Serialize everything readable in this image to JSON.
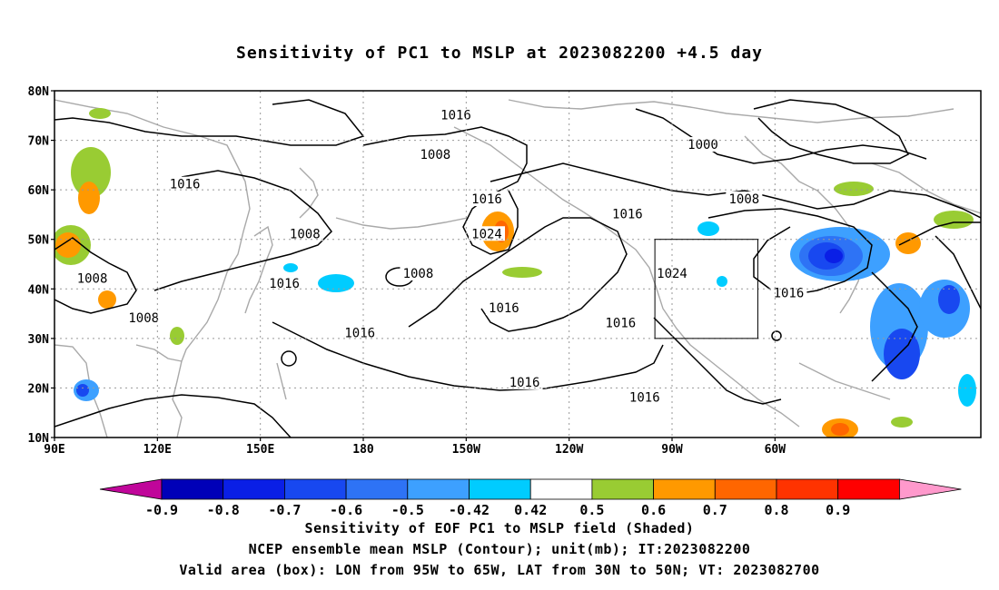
{
  "title": "Sensitivity of PC1 to MSLP at 2023082200 +4.5 day",
  "map": {
    "lat_labels": [
      "80N",
      "70N",
      "60N",
      "50N",
      "40N",
      "30N",
      "20N",
      "10N"
    ],
    "lon_labels": [
      "90E",
      "120E",
      "150E",
      "180",
      "150W",
      "120W",
      "90W",
      "60W"
    ],
    "contour_labels": [
      {
        "text": "1016",
        "lon": -153,
        "lat": 75
      },
      {
        "text": "1008",
        "lon": -159,
        "lat": 67
      },
      {
        "text": "1000",
        "lon": -81,
        "lat": 69
      },
      {
        "text": "1016",
        "lon": 128,
        "lat": 61
      },
      {
        "text": "1016",
        "lon": -144,
        "lat": 58
      },
      {
        "text": "1008",
        "lon": -69,
        "lat": 58
      },
      {
        "text": "1016",
        "lon": -103,
        "lat": 55
      },
      {
        "text": "1008",
        "lon": 163,
        "lat": 51
      },
      {
        "text": "1024",
        "lon": -144,
        "lat": 51
      },
      {
        "text": "1008",
        "lon": -164,
        "lat": 43
      },
      {
        "text": "1024",
        "lon": -90,
        "lat": 43
      },
      {
        "text": "1008",
        "lon": 101,
        "lat": 42
      },
      {
        "text": "1016",
        "lon": 157,
        "lat": 41
      },
      {
        "text": "1016",
        "lon": -56,
        "lat": 39
      },
      {
        "text": "1016",
        "lon": -139,
        "lat": 36
      },
      {
        "text": "1008",
        "lon": 116,
        "lat": 34
      },
      {
        "text": "1016",
        "lon": -105,
        "lat": 33
      },
      {
        "text": "1016",
        "lon": 179,
        "lat": 31
      },
      {
        "text": "1016",
        "lon": -133,
        "lat": 21
      },
      {
        "text": "1016",
        "lon": -98,
        "lat": 18
      }
    ],
    "valid_box": {
      "lon_min": -95,
      "lon_max": -65,
      "lat_min": 30,
      "lat_max": 50
    }
  },
  "colorbar": {
    "labels": [
      "-0.9",
      "-0.8",
      "-0.7",
      "-0.6",
      "-0.5",
      "-0.42",
      "0.42",
      "0.5",
      "0.6",
      "0.7",
      "0.8",
      "0.9"
    ],
    "colors": [
      "#c0069a",
      "#0000b8",
      "#0a1fe6",
      "#1848f0",
      "#2e73f5",
      "#3da0ff",
      "#00ccff",
      "#ffffff",
      "#99cc33",
      "#ff9900",
      "#ff6600",
      "#ff3300",
      "#ff0000",
      "#ff99cc"
    ]
  },
  "captions": {
    "line1": "Sensitivity of EOF PC1 to MSLP field (Shaded)",
    "line2": "NCEP ensemble mean MSLP (Contour); unit(mb); IT:2023082200",
    "line3": "Valid area (box): LON from 95W to 65W, LAT from 30N to 50N; VT: 2023082700"
  }
}
